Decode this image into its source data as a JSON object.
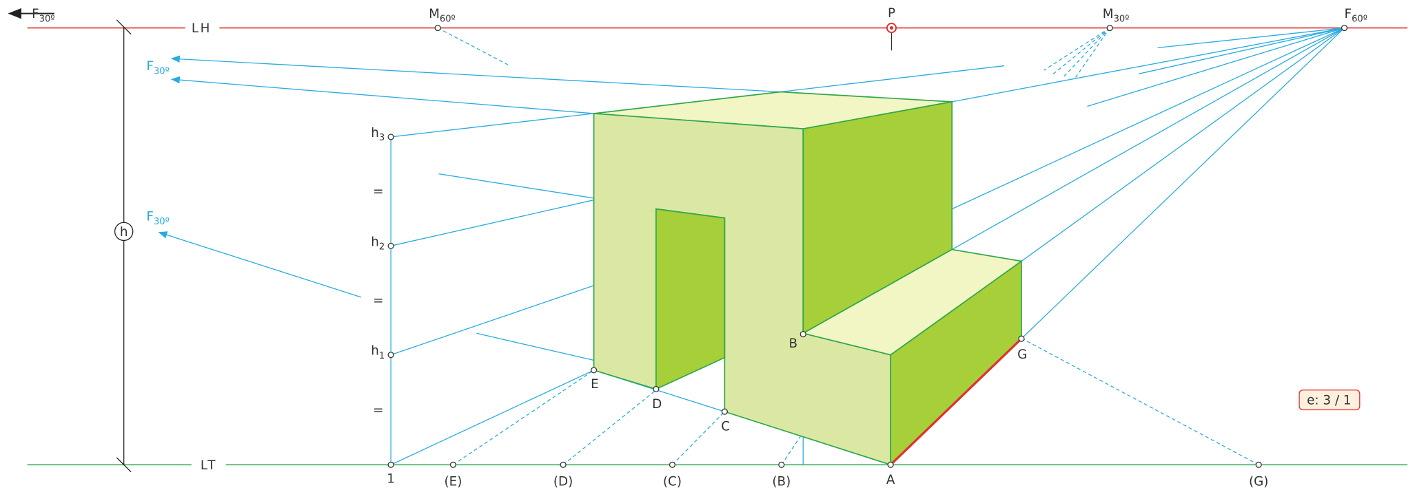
{
  "top_left_vanishing": {
    "text": "F",
    "sub": "30º"
  },
  "horizon_line": "LH",
  "ground_line": "LT",
  "horizon_points": {
    "m60": {
      "text": "M",
      "sub": "60º"
    },
    "p": "P",
    "m30": {
      "text": "M",
      "sub": "30º"
    },
    "f60": {
      "text": "F",
      "sub": "60º"
    }
  },
  "left_vanishing": [
    {
      "text": "F",
      "sub": "30º"
    },
    {
      "text": "F",
      "sub": "30º"
    }
  ],
  "height_marker": "h",
  "heights": [
    {
      "text": "h",
      "sub": "3"
    },
    {
      "text": "h",
      "sub": "2"
    },
    {
      "text": "h",
      "sub": "1"
    }
  ],
  "equals": [
    "=",
    "=",
    "="
  ],
  "ground_points": [
    "1",
    "(E)",
    "(D)",
    "(C)",
    "(B)",
    "A",
    "(G)"
  ],
  "vertices": [
    "E",
    "D",
    "C",
    "B",
    "G"
  ],
  "scale": "e: 3 / 1"
}
